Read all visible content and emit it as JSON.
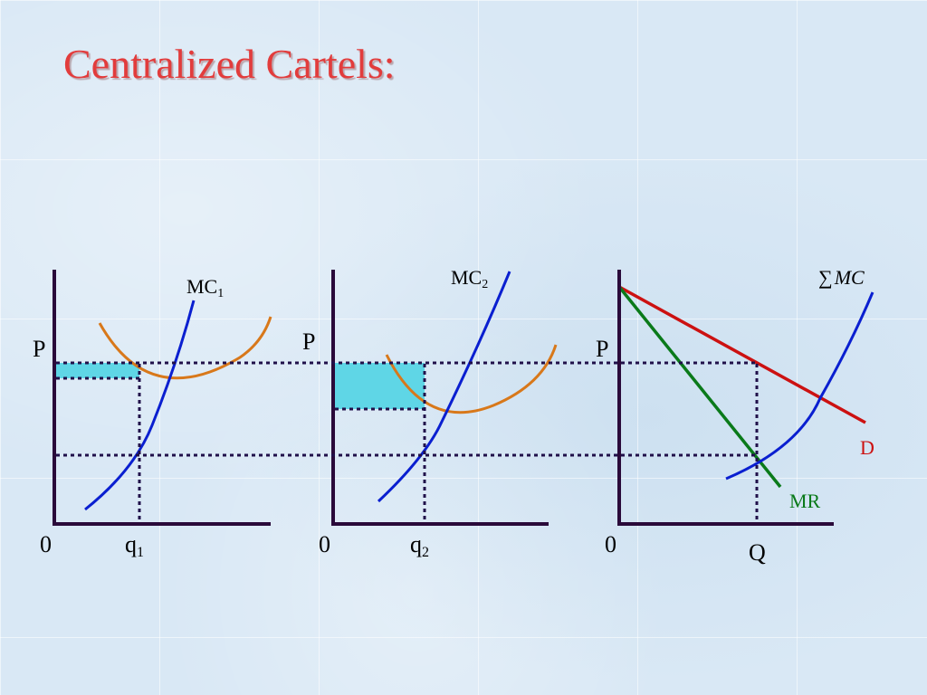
{
  "title": "Centralized Cartels:",
  "colors": {
    "title": "#e23c3c",
    "axes": "#2a0a3a",
    "mc_curve": "#0a1fd0",
    "atc_curve": "#d8781a",
    "demand": "#cc1111",
    "mr": "#0a7a1a",
    "profit_area": "#5fd6e6",
    "guide_lines": "#20104a"
  },
  "panels": {
    "firm1": {
      "price_label": "P",
      "origin_label": "0",
      "mc_label_main": "MC",
      "mc_label_sub": "1",
      "q_label_main": "q",
      "q_label_sub": "1"
    },
    "firm2": {
      "price_label": "P",
      "origin_label": "0",
      "mc_label_main": "MC",
      "mc_label_sub": "2",
      "q_label_main": "q",
      "q_label_sub": "2"
    },
    "market": {
      "price_label": "P",
      "origin_label": "0",
      "sum_mc_symbol": "∑",
      "sum_mc_label": "MC",
      "demand_label": "D",
      "mr_label": "MR",
      "q_label": "Q"
    }
  }
}
